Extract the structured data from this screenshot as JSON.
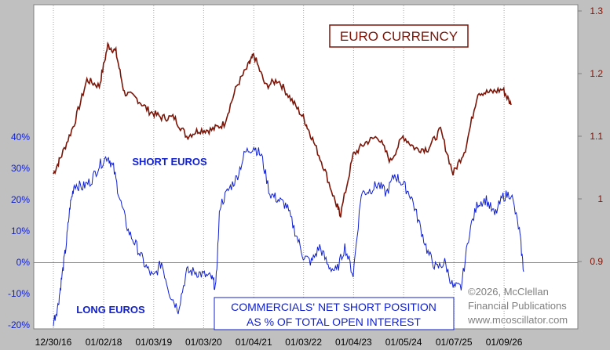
{
  "chart_data": [
    {
      "type": "line",
      "series": [
        {
          "name": "EURO CURRENCY"
        }
      ],
      "ylim": [
        0.8,
        1.3
      ],
      "y_ticks": [
        "1.3",
        "1.2",
        "1.1",
        "1",
        "0.9"
      ],
      "axis_side": "right",
      "color": "#7a1508",
      "x": [
        "2016-12-30",
        "2017-03-01",
        "2017-06-01",
        "2017-09-01",
        "2017-12-01",
        "2018-02-01",
        "2018-04-01",
        "2018-06-01",
        "2018-09-01",
        "2018-12-01",
        "2019-03-01",
        "2019-06-01",
        "2019-09-01",
        "2019-12-01",
        "2020-03-01",
        "2020-06-01",
        "2020-09-01",
        "2020-12-01",
        "2021-01-04",
        "2021-04-01",
        "2021-07-01",
        "2021-10-01",
        "2022-01-01",
        "2022-03-01",
        "2022-06-01",
        "2022-09-01",
        "2022-10-01",
        "2023-01-01",
        "2023-04-01",
        "2023-07-01",
        "2023-10-01",
        "2024-01-01",
        "2024-04-01",
        "2024-07-01",
        "2024-10-01",
        "2025-01-01",
        "2025-04-01",
        "2025-07-01",
        "2025-10-01",
        "2026-01-01",
        "2026-03-01"
      ],
      "values": [
        1.04,
        1.07,
        1.12,
        1.19,
        1.18,
        1.245,
        1.235,
        1.17,
        1.16,
        1.14,
        1.13,
        1.13,
        1.1,
        1.11,
        1.11,
        1.12,
        1.18,
        1.215,
        1.23,
        1.18,
        1.19,
        1.16,
        1.13,
        1.1,
        1.05,
        0.99,
        0.975,
        1.07,
        1.09,
        1.1,
        1.06,
        1.1,
        1.08,
        1.08,
        1.11,
        1.04,
        1.08,
        1.17,
        1.17,
        1.175,
        1.15
      ]
    },
    {
      "type": "line",
      "series": [
        {
          "name": "COMMERCIALS' NET SHORT POSITION AS % OF TOTAL OPEN INTEREST"
        }
      ],
      "ylim": [
        -20,
        40
      ],
      "y_ticks": [
        "40%",
        "30%",
        "20%",
        "10%",
        "0%",
        "-10%",
        "-20%"
      ],
      "axis_side": "left",
      "color": "#1020d0",
      "x": [
        "2016-12-30",
        "2017-02-01",
        "2017-03-01",
        "2017-04-01",
        "2017-05-01",
        "2017-06-01",
        "2017-08-01",
        "2017-10-01",
        "2017-12-01",
        "2018-02-01",
        "2018-03-15",
        "2018-05-01",
        "2018-07-01",
        "2018-09-01",
        "2018-11-01",
        "2019-01-01",
        "2019-03-01",
        "2019-05-01",
        "2019-07-01",
        "2019-09-01",
        "2019-11-01",
        "2020-01-01",
        "2020-03-01",
        "2020-04-01",
        "2020-05-01",
        "2020-07-01",
        "2020-09-01",
        "2020-11-01",
        "2021-01-04",
        "2021-03-01",
        "2021-05-01",
        "2021-07-01",
        "2021-09-01",
        "2021-11-01",
        "2022-01-01",
        "2022-03-01",
        "2022-05-01",
        "2022-07-01",
        "2022-09-01",
        "2022-11-01",
        "2023-01-01",
        "2023-03-01",
        "2023-05-01",
        "2023-07-01",
        "2023-09-01",
        "2023-11-01",
        "2024-01-01",
        "2024-03-01",
        "2024-05-01",
        "2024-07-01",
        "2024-09-01",
        "2024-11-01",
        "2025-01-01",
        "2025-03-01",
        "2025-05-01",
        "2025-07-01",
        "2025-09-01",
        "2025-11-01",
        "2026-01-01",
        "2026-03-01",
        "2026-05-01",
        "2026-06-01"
      ],
      "values": [
        -19,
        -14,
        -5,
        5,
        18,
        25,
        24,
        26,
        31,
        34,
        30,
        20,
        10,
        5,
        -1,
        -5,
        0,
        -10,
        -15,
        -3,
        -3,
        -4,
        -5,
        -8,
        18,
        23,
        27,
        35,
        37,
        34,
        22,
        20,
        18,
        10,
        2,
        0,
        5,
        -1,
        -3,
        5,
        -4,
        22,
        23,
        25,
        22,
        28,
        25,
        21,
        12,
        3,
        -2,
        0,
        -8,
        -8,
        10,
        19,
        20,
        15,
        21,
        22,
        10,
        -3
      ]
    }
  ],
  "x_labels": [
    "12/30/16",
    "01/02/18",
    "01/03/19",
    "01/03/20",
    "01/04/21",
    "01/03/22",
    "01/04/23",
    "01/05/24",
    "01/07/25",
    "01/09/26"
  ],
  "title_box": "EURO CURRENCY",
  "short_label": "SHORT EUROS",
  "long_label": "LONG EUROS",
  "commercials_box": [
    "COMMERCIALS' NET SHORT POSITION",
    "AS % OF TOTAL OPEN INTEREST"
  ],
  "copyright_lines": [
    "©2026, McClellan",
    "Financial Publications",
    "www.mcoscillator.com"
  ],
  "grid": true
}
